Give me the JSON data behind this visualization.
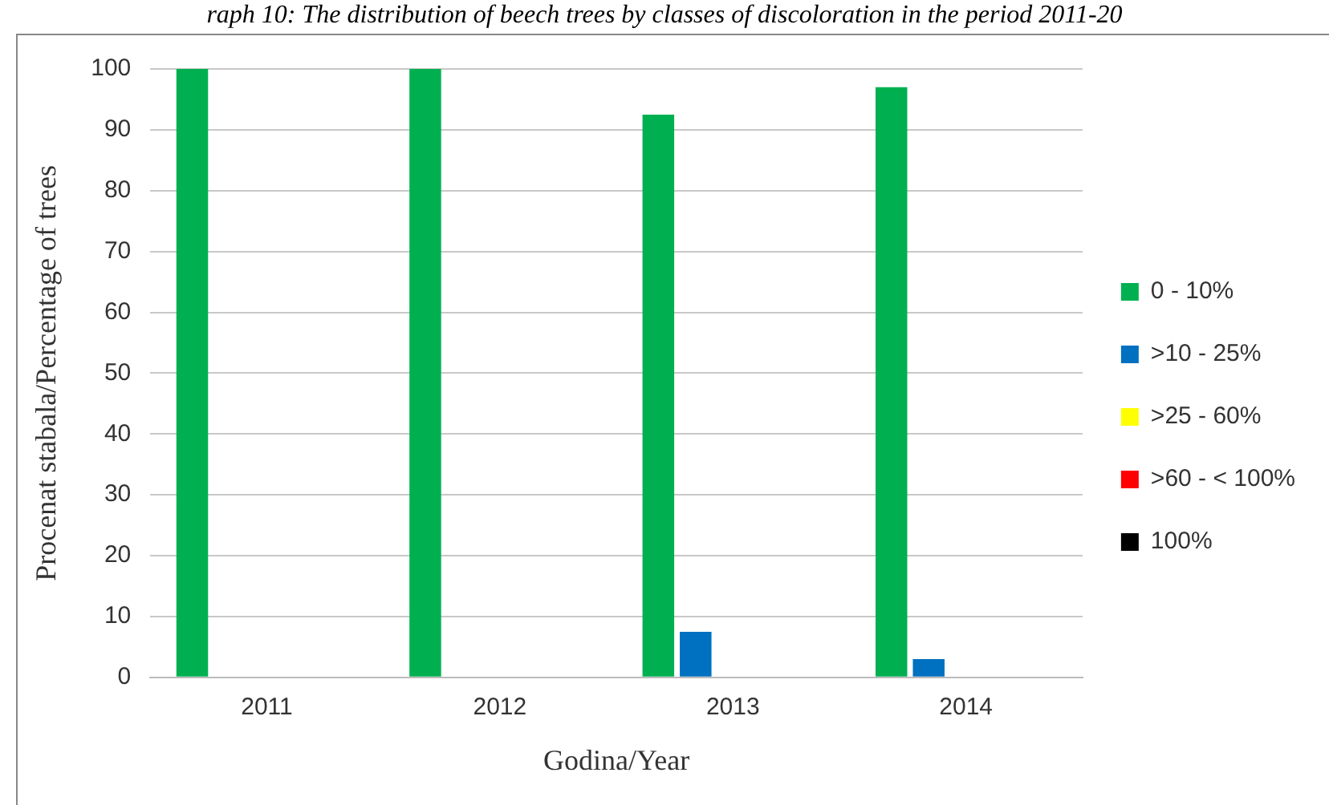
{
  "chart_data": {
    "type": "bar",
    "title": "raph 10: The distribution of beech trees by classes of discoloration in the period 2011-20",
    "xlabel": "Godina/Year",
    "ylabel": "Procenat stabala/Percentage of trees",
    "categories": [
      "2011",
      "2012",
      "2013",
      "2014"
    ],
    "series": [
      {
        "name": "0 - 10%",
        "color": "#00b050",
        "values": [
          100,
          100,
          92.5,
          97
        ]
      },
      {
        "name": ">10 - 25%",
        "color": "#0070c0",
        "values": [
          0,
          0,
          7.5,
          3
        ]
      },
      {
        "name": ">25 - 60%",
        "color": "#ffff00",
        "values": [
          0,
          0,
          0,
          0
        ]
      },
      {
        "name": ">60 - < 100%",
        "color": "#ff0000",
        "values": [
          0,
          0,
          0,
          0
        ]
      },
      {
        "name": "100%",
        "color": "#000000",
        "values": [
          0,
          0,
          0,
          0
        ]
      }
    ],
    "ylim": [
      0,
      100
    ],
    "yticks": [
      0,
      10,
      20,
      30,
      40,
      50,
      60,
      70,
      80,
      90,
      100
    ],
    "grid": "y",
    "legend": "right"
  }
}
